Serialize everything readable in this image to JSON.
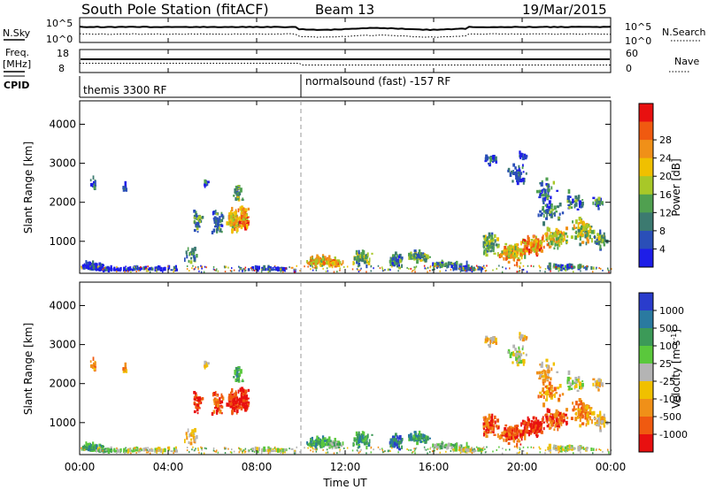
{
  "header": {
    "station": "South Pole Station (fitACF)",
    "beam": "Beam 13",
    "date": "19/Mar/2015"
  },
  "top_panels": {
    "nsky_label": "N.Sky",
    "nsky_ticks": [
      "10^5",
      "10^0"
    ],
    "nsearch_label": "N.Search",
    "nsearch_ticks": [
      "10^5",
      "10^0"
    ],
    "freq_label_1": "Freq.",
    "freq_label_2": "[MHz]",
    "freq_ticks": [
      "18",
      "8"
    ],
    "nave_label": "Nave",
    "nave_ticks": [
      "60",
      "0"
    ],
    "cpid_label": "CPID",
    "cpid_segments": [
      {
        "start_hour": 0,
        "label": "themis 3300 RF"
      },
      {
        "start_hour": 10,
        "label": "normalsound (fast) -157 RF"
      }
    ]
  },
  "chart_data": [
    {
      "type": "heatmap",
      "title": "",
      "xlabel": "",
      "ylabel": "Slant Range [km]",
      "xlim": [
        0,
        24
      ],
      "ylim": [
        180,
        4600
      ],
      "y_ticks": [
        "1000",
        "2000",
        "3000",
        "4000"
      ],
      "colorbar_label": "Power [dB]",
      "colorbar_ticks": [
        "4",
        "8",
        "12",
        "16",
        "20",
        "24",
        "28"
      ],
      "colorbar_colors": [
        "#1e1ee8",
        "#2a4fb8",
        "#3c7a70",
        "#50a050",
        "#a8c828",
        "#f0c000",
        "#f09018",
        "#f05a10",
        "#e81010"
      ]
    },
    {
      "type": "heatmap",
      "title": "",
      "xlabel": "Time UT",
      "ylabel": "Slant Range [km]",
      "xlim": [
        0,
        24
      ],
      "ylim": [
        180,
        4600
      ],
      "x_ticks": [
        "00:00",
        "04:00",
        "08:00",
        "12:00",
        "16:00",
        "20:00",
        "00:00"
      ],
      "y_ticks": [
        "1000",
        "2000",
        "3000",
        "4000"
      ],
      "colorbar_label": "Velocity [m s",
      "colorbar_label_sup": "-1",
      "colorbar_label_end": "]",
      "colorbar_ticks": [
        "1000",
        "500",
        "100",
        "25",
        "-25",
        "-100",
        "-500",
        "-1000"
      ],
      "colorbar_colors": [
        "#2a3ccc",
        "#2a7aa0",
        "#3c9a58",
        "#5ac83c",
        "#b4b4b4",
        "#f0c000",
        "#f09018",
        "#f05a10",
        "#e81010"
      ]
    }
  ]
}
